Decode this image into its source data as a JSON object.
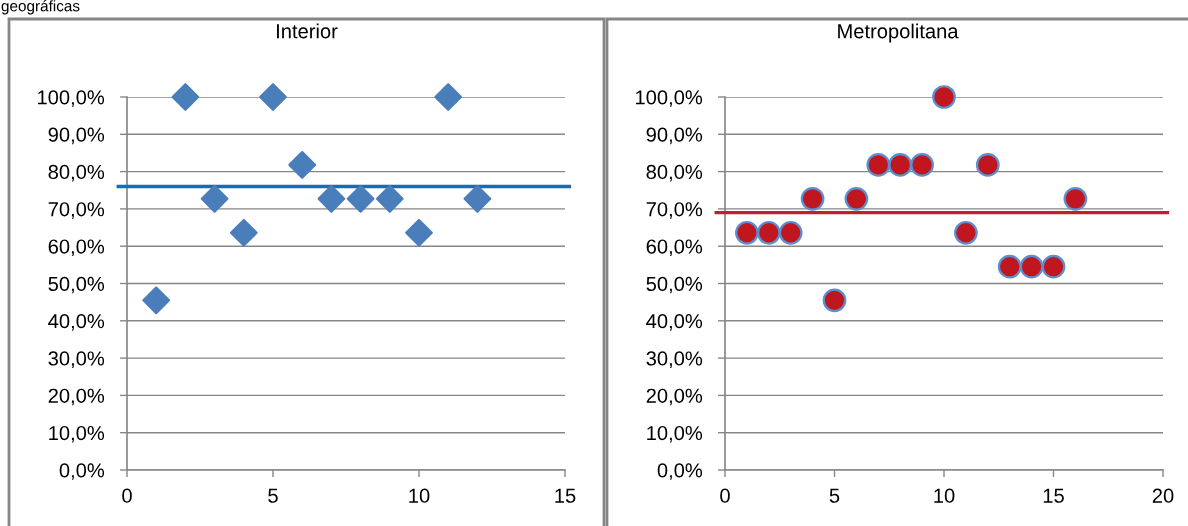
{
  "chart_data": [
    {
      "type": "scatter",
      "title": "Interior",
      "annotations": [
        "geográficas"
      ],
      "x": [
        1,
        2,
        3,
        4,
        5,
        6,
        7,
        8,
        9,
        10,
        11,
        12
      ],
      "values": [
        45.5,
        100,
        72.7,
        63.6,
        100,
        81.8,
        72.7,
        72.7,
        72.7,
        63.6,
        100,
        72.7
      ],
      "color": "#4a7ebb",
      "marker": "diamond",
      "xlim": [
        0,
        15
      ],
      "xticks": [
        0,
        5,
        10,
        15
      ],
      "ylim": [
        0,
        100
      ],
      "yticks": [
        {
          "value": 0,
          "label": "0,0%"
        },
        {
          "value": 10,
          "label": "10,0%"
        },
        {
          "value": 20,
          "label": "20,0%"
        },
        {
          "value": 30,
          "label": "30,0%"
        },
        {
          "value": 40,
          "label": "40,0%"
        },
        {
          "value": 50,
          "label": "50,0%"
        },
        {
          "value": 60,
          "label": "60,0%"
        },
        {
          "value": 70,
          "label": "70,0%"
        },
        {
          "value": 80,
          "label": "80,0%"
        },
        {
          "value": 90,
          "label": "90,0%"
        },
        {
          "value": 100,
          "label": "100,0%"
        }
      ],
      "grid": "y",
      "ref_lines": [
        {
          "axis": "y",
          "value": 76,
          "color": "#0f6ebe"
        }
      ]
    },
    {
      "type": "scatter",
      "title": "Metropolitana",
      "x": [
        1,
        2,
        3,
        4,
        5,
        6,
        7,
        8,
        9,
        10,
        11,
        12,
        13,
        14,
        15,
        16
      ],
      "values": [
        63.6,
        63.6,
        63.6,
        72.7,
        45.5,
        72.7,
        81.8,
        81.8,
        81.8,
        100,
        63.6,
        81.8,
        54.5,
        54.5,
        54.5,
        72.7
      ],
      "color": "#c0161f",
      "marker": "circle",
      "xlim": [
        0,
        20
      ],
      "xticks": [
        0,
        5,
        10,
        15,
        20
      ],
      "ylim": [
        0,
        100
      ],
      "yticks": [
        {
          "value": 0,
          "label": "0,0%"
        },
        {
          "value": 10,
          "label": "10,0%"
        },
        {
          "value": 20,
          "label": "20,0%"
        },
        {
          "value": 30,
          "label": "30,0%"
        },
        {
          "value": 40,
          "label": "40,0%"
        },
        {
          "value": 50,
          "label": "50,0%"
        },
        {
          "value": 60,
          "label": "60,0%"
        },
        {
          "value": 70,
          "label": "70,0%"
        },
        {
          "value": 80,
          "label": "80,0%"
        },
        {
          "value": 90,
          "label": "90,0%"
        },
        {
          "value": 100,
          "label": "100,0%"
        }
      ],
      "grid": "y",
      "ref_lines": [
        {
          "axis": "y",
          "value": 69,
          "color": "#c0202a"
        }
      ]
    }
  ]
}
